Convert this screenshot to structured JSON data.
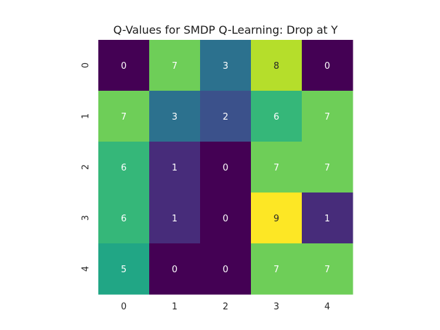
{
  "chart_data": {
    "type": "heatmap",
    "title": "Q-Values for SMDP Q-Learning: Drop at Y",
    "xlabel": "",
    "ylabel": "",
    "x_ticks": [
      "0",
      "1",
      "2",
      "3",
      "4"
    ],
    "y_ticks": [
      "0",
      "1",
      "2",
      "3",
      "4"
    ],
    "values": [
      [
        0,
        7,
        3,
        8,
        0
      ],
      [
        7,
        3,
        2,
        6,
        7
      ],
      [
        6,
        1,
        0,
        7,
        7
      ],
      [
        6,
        1,
        0,
        9,
        1
      ],
      [
        5,
        0,
        0,
        7,
        7
      ]
    ],
    "annotations": true,
    "colormap": "viridis",
    "vmin": 0,
    "vmax": 9,
    "colorbar": false,
    "grid": false,
    "colors": {
      "0": "#440154",
      "1": "#472c7a",
      "2": "#3b518b",
      "3": "#2c718e",
      "4": "#21908d",
      "5": "#21a685",
      "6": "#35b779",
      "7": "#6ece58",
      "8": "#b5de2b",
      "9": "#fde725"
    },
    "annotation_text_dark": "#262626",
    "annotation_text_light": "#ffffff"
  }
}
